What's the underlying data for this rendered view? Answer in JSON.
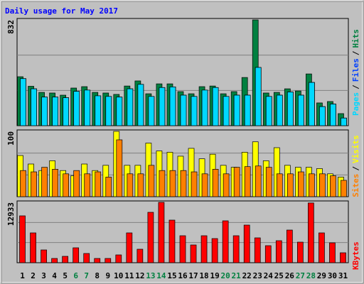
{
  "title": "Daily usage for May 2017",
  "legend_separator": "/",
  "categories": [
    "1",
    "2",
    "3",
    "4",
    "5",
    "6",
    "7",
    "8",
    "9",
    "10",
    "11",
    "12",
    "13",
    "14",
    "15",
    "16",
    "17",
    "18",
    "19",
    "20",
    "21",
    "22",
    "23",
    "24",
    "25",
    "26",
    "27",
    "28",
    "29",
    "30",
    "31"
  ],
  "category_colors": [
    "#000000",
    "#000000",
    "#000000",
    "#000000",
    "#000000",
    "#008040",
    "#008040",
    "#000000",
    "#000000",
    "#000000",
    "#000000",
    "#000000",
    "#008040",
    "#008040",
    "#000000",
    "#000000",
    "#000000",
    "#000000",
    "#000000",
    "#008040",
    "#008040",
    "#000000",
    "#000000",
    "#000000",
    "#000000",
    "#000000",
    "#008040",
    "#008040",
    "#000000",
    "#000000",
    "#000000"
  ],
  "chart_data": [
    {
      "type": "bar",
      "ylim": [
        0,
        832
      ],
      "yticks": [
        832
      ],
      "grid": true,
      "series": [
        {
          "name": "Hits",
          "color": "#008040",
          "values": [
            385,
            310,
            262,
            257,
            240,
            296,
            307,
            262,
            257,
            246,
            312,
            352,
            251,
            329,
            329,
            268,
            251,
            307,
            312,
            251,
            268,
            379,
            832,
            257,
            262,
            290,
            273,
            407,
            179,
            190,
            95
          ]
        },
        {
          "name": "Files",
          "color": "#0040ff",
          "values": [
            370,
            290,
            225,
            225,
            220,
            270,
            280,
            235,
            230,
            225,
            290,
            325,
            230,
            300,
            305,
            240,
            230,
            280,
            300,
            230,
            240,
            240,
            458,
            230,
            240,
            265,
            240,
            340,
            150,
            170,
            60
          ]
        },
        {
          "name": "Pages",
          "color": "#00d8ff",
          "values": [
            370,
            290,
            225,
            225,
            220,
            270,
            280,
            235,
            230,
            225,
            290,
            325,
            230,
            300,
            305,
            240,
            230,
            280,
            300,
            230,
            240,
            240,
            458,
            230,
            240,
            265,
            240,
            340,
            150,
            170,
            60
          ]
        }
      ]
    },
    {
      "type": "bar",
      "ylim": [
        0,
        100
      ],
      "yticks": [
        100
      ],
      "grid": true,
      "series": [
        {
          "name": "Visits",
          "color": "#ffff00",
          "values": [
            63,
            50,
            40,
            55,
            40,
            32,
            50,
            40,
            48,
            100,
            48,
            48,
            82,
            70,
            68,
            62,
            74,
            58,
            65,
            48,
            45,
            68,
            84,
            55,
            75,
            48,
            45,
            45,
            43,
            35,
            30
          ]
        },
        {
          "name": "Sites",
          "color": "#ff8000",
          "values": [
            40,
            38,
            45,
            42,
            35,
            40,
            35,
            38,
            30,
            87,
            35,
            35,
            48,
            40,
            40,
            40,
            38,
            35,
            42,
            35,
            45,
            46,
            47,
            45,
            35,
            35,
            38,
            35,
            35,
            32,
            25
          ]
        }
      ]
    },
    {
      "type": "bar",
      "ylim": [
        0,
        12933
      ],
      "yticks": [
        12933
      ],
      "grid": true,
      "series": [
        {
          "name": "KBytes",
          "color": "#ff0000",
          "values": [
            10043,
            6391,
            2739,
            913,
            1369,
            3195,
            1978,
            913,
            913,
            1674,
            6391,
            2891,
            10802,
            12933,
            9129,
            5782,
            3804,
            5782,
            5173,
            8977,
            5782,
            8064,
            5325,
            3652,
            4717,
            6999,
            4412,
            12800,
            6391,
            4260,
            2130
          ]
        }
      ]
    }
  ]
}
